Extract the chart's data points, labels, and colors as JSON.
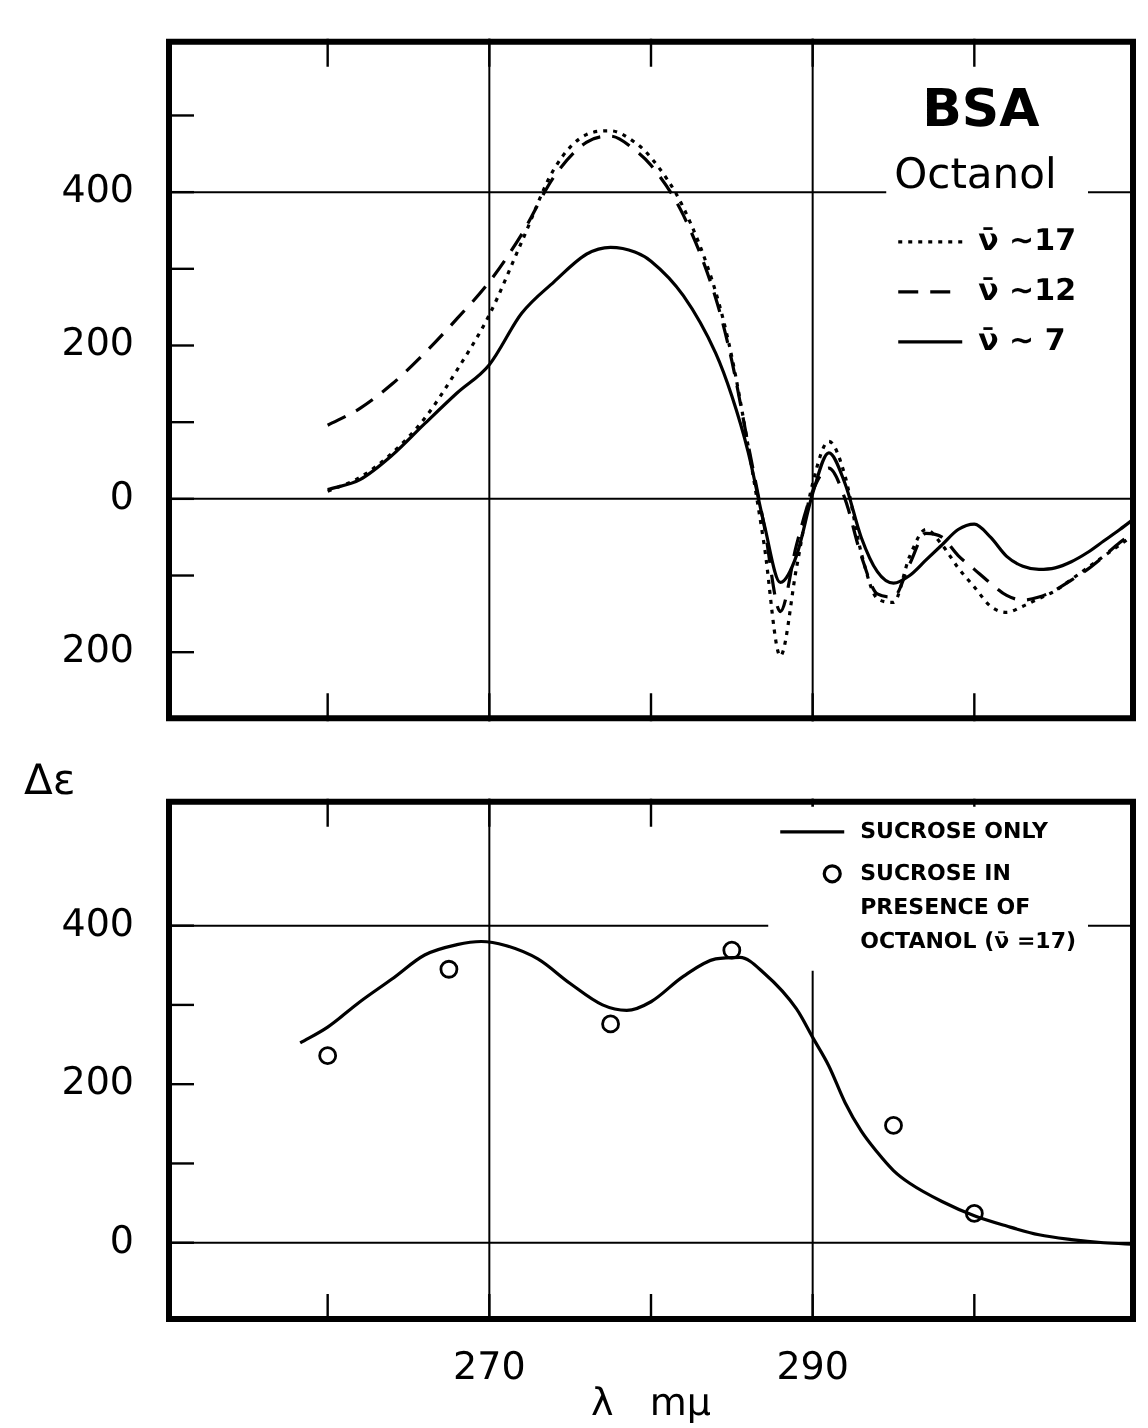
{
  "chart_data": [
    {
      "type": "line",
      "annotations": [
        "BSA",
        "Octanol"
      ],
      "legend": "top right",
      "tick_labels": "y",
      "xlim": [
        250,
        310
      ],
      "xticks": [
        {
          "value": 260,
          "label": null
        },
        {
          "value": 270,
          "label": null
        },
        {
          "value": 280,
          "label": null
        },
        {
          "value": 290,
          "label": null
        },
        {
          "value": 300,
          "label": null
        }
      ],
      "ylim": [
        -290,
        600
      ],
      "yticks": [
        {
          "value": -200,
          "label": "200"
        },
        {
          "value": -100,
          "label": null
        },
        0,
        {
          "value": 100,
          "label": null
        },
        200,
        {
          "value": 300,
          "label": null
        },
        400,
        {
          "value": 500,
          "label": null
        }
      ],
      "ref_lines": [
        {
          "axis": "x",
          "value": 270,
          "label": null
        },
        {
          "axis": "x",
          "value": 290,
          "label": null
        },
        {
          "axis": "y",
          "value": 0,
          "label": null
        },
        {
          "axis": "y",
          "value": 400,
          "label": null
        }
      ],
      "series": [
        {
          "name": "ν̄ ~17",
          "color": "#000000",
          "line_style": "dotted",
          "marker": "none",
          "x": [
            260,
            262,
            264,
            266,
            268,
            270,
            272,
            274,
            276,
            277.5,
            279,
            280,
            282,
            284,
            285,
            286,
            287,
            288,
            289,
            290,
            291,
            292,
            293,
            294,
            295,
            296,
            297,
            298,
            299,
            300,
            301,
            302,
            303,
            304,
            305,
            306,
            307,
            308,
            309,
            310
          ],
          "values": [
            10,
            28,
            60,
            105,
            168,
            240,
            335,
            430,
            475,
            480,
            465,
            445,
            380,
            270,
            185,
            70,
            -60,
            -205,
            -90,
            20,
            75,
            30,
            -70,
            -130,
            -135,
            -75,
            -40,
            -60,
            -90,
            -115,
            -140,
            -148,
            -140,
            -130,
            -120,
            -105,
            -90,
            -75,
            -60,
            -45
          ]
        },
        {
          "name": "ν̄ ~12",
          "color": "#000000",
          "line_style": "dashed",
          "marker": "none",
          "x": [
            260,
            262,
            264,
            266,
            268,
            270,
            272,
            274,
            276,
            277.5,
            279,
            280,
            282,
            284,
            285,
            286,
            287,
            288,
            289,
            290,
            291,
            292,
            293,
            294,
            295,
            296,
            297,
            298,
            299,
            300,
            301,
            302,
            303,
            304,
            305,
            306,
            307,
            308,
            309,
            310
          ],
          "values": [
            96,
            118,
            150,
            190,
            235,
            283,
            345,
            420,
            465,
            473,
            455,
            435,
            370,
            262,
            180,
            72,
            -35,
            -147,
            -60,
            10,
            40,
            0,
            -74,
            -124,
            -128,
            -85,
            -45,
            -50,
            -74,
            -92,
            -110,
            -126,
            -132,
            -128,
            -119,
            -106,
            -92,
            -75,
            -57,
            -42
          ]
        },
        {
          "name": "ν̄ ~ 7",
          "color": "#000000",
          "line_style": "solid",
          "marker": "none",
          "x": [
            260,
            262,
            264,
            266,
            268,
            270,
            272,
            274,
            276,
            277.5,
            279,
            280,
            282,
            284,
            285,
            286,
            287,
            288,
            289,
            290,
            291,
            292,
            293,
            294,
            295,
            296,
            297,
            298,
            299,
            300,
            301,
            302,
            303,
            304,
            305,
            306,
            307,
            308,
            309,
            310
          ],
          "values": [
            12,
            25,
            57,
            98,
            138,
            175,
            242,
            283,
            319,
            328,
            322,
            310,
            265,
            190,
            134,
            62,
            -33,
            -109,
            -74,
            7,
            60,
            20,
            -50,
            -95,
            -110,
            -100,
            -80,
            -60,
            -40,
            -33,
            -50,
            -75,
            -88,
            -92,
            -90,
            -82,
            -70,
            -55,
            -40,
            -24
          ]
        }
      ]
    },
    {
      "type": "line",
      "xlabel": "λ   mμ",
      "ylabel": "Δε",
      "legend": "top right",
      "xlim": [
        250,
        310
      ],
      "xticks": [
        {
          "value": 260,
          "label": null
        },
        270,
        {
          "value": 280,
          "label": null
        },
        290,
        {
          "value": 300,
          "label": null
        }
      ],
      "ylim": [
        -100,
        560
      ],
      "yticks": [
        0,
        {
          "value": 100,
          "label": null
        },
        200,
        {
          "value": 300,
          "label": null
        },
        400
      ],
      "ref_lines": [
        {
          "axis": "x",
          "value": 270,
          "label": null
        },
        {
          "axis": "x",
          "value": 290,
          "label": null
        },
        {
          "axis": "y",
          "value": 0,
          "label": null
        },
        {
          "axis": "y",
          "value": 400,
          "label": null
        }
      ],
      "series": [
        {
          "name": "SUCROSE ONLY",
          "color": "#000000",
          "line_style": "solid",
          "marker": "none",
          "x": [
            258.3,
            260,
            262,
            264,
            266,
            268,
            269.5,
            271,
            273,
            275,
            277,
            278.5,
            280,
            282,
            284,
            285.5,
            287,
            289,
            290,
            291,
            292,
            293,
            294,
            295,
            296,
            298,
            300,
            302,
            304,
            306,
            308,
            310
          ],
          "values": [
            252,
            272,
            304,
            333,
            363,
            376,
            380,
            375,
            358,
            327,
            300,
            293,
            304,
            336,
            358,
            360,
            340,
            295,
            259,
            223,
            177,
            141,
            114,
            91,
            75,
            52,
            34,
            21,
            10,
            4,
            0,
            -2
          ]
        },
        {
          "name": "SUCROSE IN PRESENCE OF OCTANOL (ν̄ =17)",
          "type": "scatter",
          "color": "#000000",
          "marker": "circle",
          "x": [
            260,
            267.5,
            277.5,
            285,
            295,
            300
          ],
          "values": [
            236,
            345,
            276,
            369,
            148,
            37
          ]
        }
      ]
    }
  ]
}
